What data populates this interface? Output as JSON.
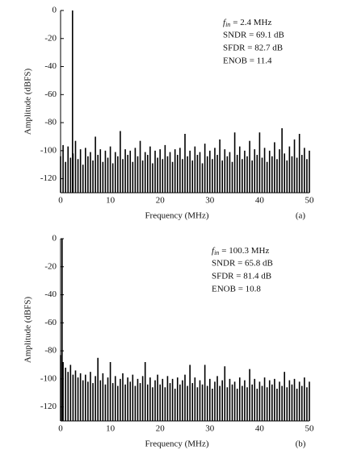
{
  "chart_data": [
    {
      "type": "stem",
      "color": "#000000",
      "xlabel": "Frequency (MHz)",
      "ylabel": "Amplitude (dBFS)",
      "panel_label": "(a)",
      "fin_label": {
        "symbol": "f",
        "subscript": "in",
        "text": "= 2.4 MHz"
      },
      "metrics": [
        "SNDR = 69.1 dB",
        "SFDR = 82.7 dB",
        "ENOB = 11.4"
      ],
      "xlim": [
        0,
        50
      ],
      "ylim": [
        -130,
        0
      ],
      "xticks": [
        0,
        10,
        20,
        30,
        40,
        50
      ],
      "yticks": [
        0,
        -20,
        -40,
        -60,
        -80,
        -100,
        -120
      ],
      "x": [
        0,
        0.5,
        1,
        1.5,
        2,
        2.4,
        2.5,
        3,
        3.5,
        4,
        4.5,
        5,
        5.5,
        6,
        6.5,
        7,
        7.5,
        8,
        8.5,
        9,
        9.5,
        10,
        10.5,
        11,
        11.5,
        12,
        12.5,
        13,
        13.5,
        14,
        14.5,
        15,
        15.5,
        16,
        16.5,
        17,
        17.5,
        18,
        18.5,
        19,
        19.5,
        20,
        20.5,
        21,
        21.5,
        22,
        22.5,
        23,
        23.5,
        24,
        24.5,
        25,
        25.5,
        26,
        26.5,
        27,
        27.5,
        28,
        28.5,
        29,
        29.5,
        30,
        30.5,
        31,
        31.5,
        32,
        32.5,
        33,
        33.5,
        34,
        34.5,
        35,
        35.5,
        36,
        36.5,
        37,
        37.5,
        38,
        38.5,
        39,
        39.5,
        40,
        40.5,
        41,
        41.5,
        42,
        42.5,
        43,
        43.5,
        44,
        44.5,
        45,
        45.5,
        46,
        46.5,
        47,
        47.5,
        48,
        48.5,
        49,
        49.5,
        50
      ],
      "values": [
        -104,
        -96,
        -108,
        -97,
        -105,
        0,
        -102,
        -93,
        -106,
        -99,
        -110,
        -98,
        -104,
        -101,
        -107,
        -90,
        -103,
        -99,
        -108,
        -100,
        -105,
        -97,
        -109,
        -101,
        -104,
        -86,
        -106,
        -99,
        -103,
        -100,
        -108,
        -98,
        -104,
        -93,
        -107,
        -101,
        -103,
        -97,
        -109,
        -100,
        -105,
        -99,
        -106,
        -96,
        -104,
        -101,
        -108,
        -99,
        -103,
        -98,
        -106,
        -88,
        -104,
        -100,
        -107,
        -97,
        -103,
        -101,
        -109,
        -95,
        -104,
        -100,
        -106,
        -98,
        -103,
        -92,
        -107,
        -99,
        -104,
        -101,
        -108,
        -87,
        -103,
        -97,
        -106,
        -100,
        -104,
        -93,
        -107,
        -99,
        -103,
        -87,
        -105,
        -98,
        -108,
        -100,
        -104,
        -94,
        -106,
        -99,
        -84,
        -102,
        -107,
        -97,
        -104,
        -92,
        -105,
        -88,
        -103,
        -98,
        -106,
        -100
      ]
    },
    {
      "type": "stem",
      "color": "#000000",
      "xlabel": "Frequency (MHz)",
      "ylabel": "Amplitude (dBFS)",
      "panel_label": "(b)",
      "fin_label": {
        "symbol": "f",
        "subscript": "in",
        "text": "= 100.3 MHz"
      },
      "metrics": [
        "SNDR = 65.8 dB",
        "SFDR = 81.4 dB",
        "ENOB = 10.8"
      ],
      "xlim": [
        0,
        50
      ],
      "ylim": [
        -130,
        0
      ],
      "xticks": [
        0,
        10,
        20,
        30,
        40,
        50
      ],
      "yticks": [
        0,
        -20,
        -40,
        -60,
        -80,
        -100,
        -120
      ],
      "x": [
        0,
        0.3,
        0.5,
        1,
        1.5,
        2,
        2.5,
        3,
        3.5,
        4,
        4.5,
        5,
        5.5,
        6,
        6.5,
        7,
        7.5,
        8,
        8.5,
        9,
        9.5,
        10,
        10.5,
        11,
        11.5,
        12,
        12.5,
        13,
        13.5,
        14,
        14.5,
        15,
        15.5,
        16,
        16.5,
        17,
        17.5,
        18,
        18.5,
        19,
        19.5,
        20,
        20.5,
        21,
        21.5,
        22,
        22.5,
        23,
        23.5,
        24,
        24.5,
        25,
        25.5,
        26,
        26.5,
        27,
        27.5,
        28,
        28.5,
        29,
        29.5,
        30,
        30.5,
        31,
        31.5,
        32,
        32.5,
        33,
        33.5,
        34,
        34.5,
        35,
        35.5,
        36,
        36.5,
        37,
        37.5,
        38,
        38.5,
        39,
        39.5,
        40,
        40.5,
        41,
        41.5,
        42,
        42.5,
        43,
        43.5,
        44,
        44.5,
        45,
        45.5,
        46,
        46.5,
        47,
        47.5,
        48,
        48.5,
        49,
        49.5,
        50
      ],
      "values": [
        -83,
        0,
        -88,
        -92,
        -95,
        -90,
        -97,
        -94,
        -99,
        -96,
        -101,
        -97,
        -102,
        -95,
        -103,
        -98,
        -85,
        -101,
        -96,
        -104,
        -99,
        -88,
        -103,
        -98,
        -105,
        -100,
        -96,
        -104,
        -99,
        -102,
        -97,
        -105,
        -100,
        -103,
        -98,
        -88,
        -104,
        -99,
        -106,
        -101,
        -97,
        -104,
        -100,
        -106,
        -98,
        -103,
        -100,
        -107,
        -99,
        -104,
        -101,
        -97,
        -105,
        -90,
        -103,
        -99,
        -106,
        -101,
        -104,
        -90,
        -105,
        -100,
        -107,
        -102,
        -98,
        -105,
        -101,
        -91,
        -106,
        -100,
        -104,
        -102,
        -107,
        -99,
        -105,
        -101,
        -106,
        -93,
        -104,
        -100,
        -107,
        -102,
        -105,
        -99,
        -106,
        -101,
        -104,
        -100,
        -107,
        -102,
        -105,
        -95,
        -106,
        -101,
        -104,
        -100,
        -107,
        -102,
        -105,
        -99,
        -106,
        -102
      ]
    }
  ]
}
